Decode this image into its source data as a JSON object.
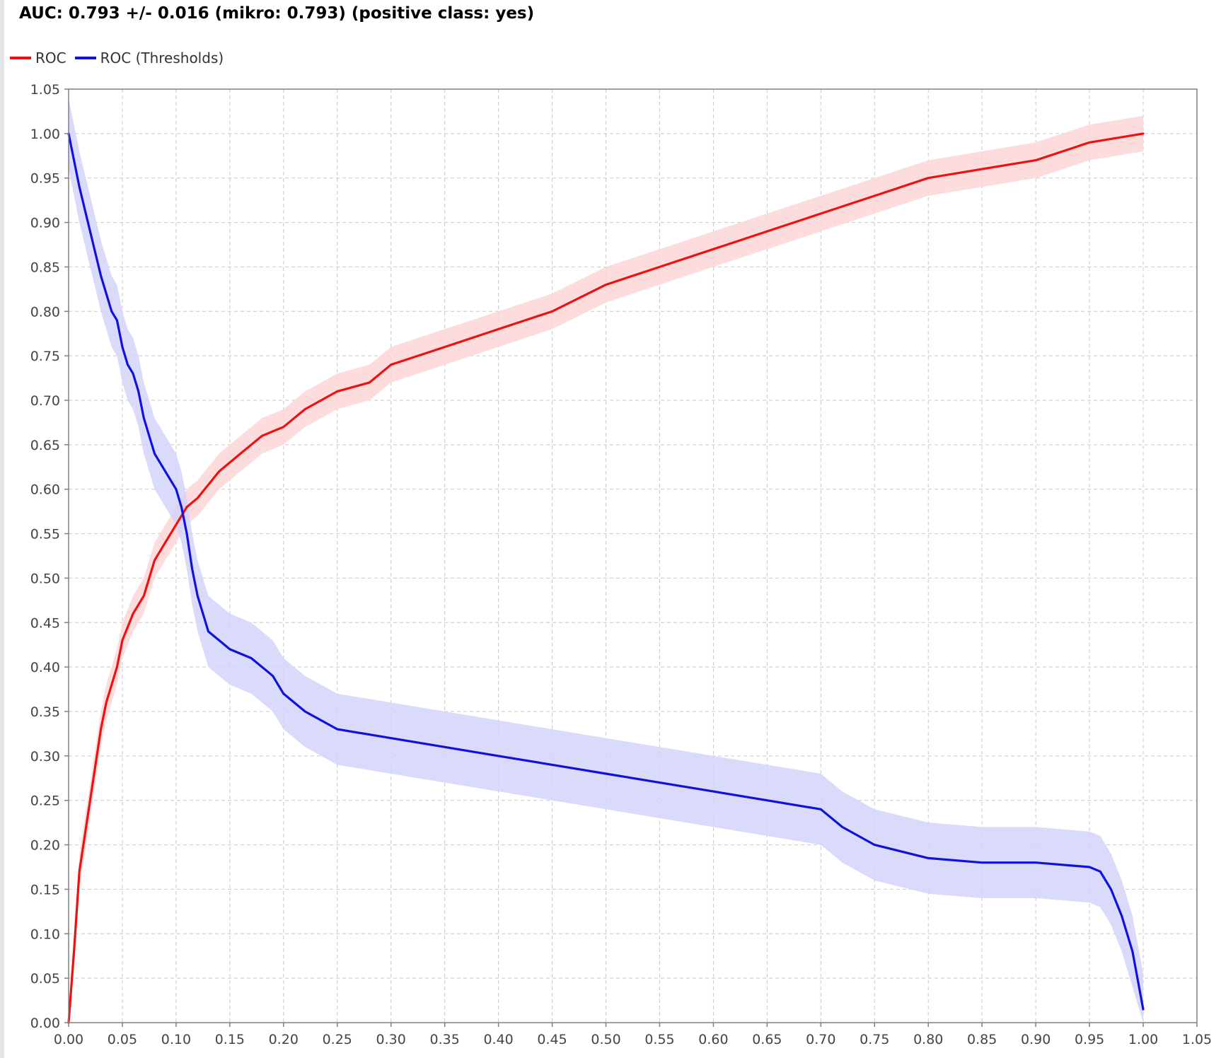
{
  "title": "AUC: 0.793 +/- 0.016 (mikro: 0.793) (positive class: yes)",
  "legend": [
    {
      "name": "ROC",
      "color": "#ee1111"
    },
    {
      "name": "ROC (Thresholds)",
      "color": "#1111dd"
    }
  ],
  "colors": {
    "roc": "#ee1111",
    "roc_band": "#fbd6d6",
    "thr": "#1111dd",
    "thr_band": "#d4d4fa",
    "grid": "#c8c8c8",
    "axis": "#808080"
  },
  "chart_data": {
    "type": "line",
    "title": "AUC: 0.793 +/- 0.016 (mikro: 0.793) (positive class: yes)",
    "xlabel": "",
    "ylabel": "",
    "xlim": [
      0,
      1.05
    ],
    "ylim": [
      0,
      1.05
    ],
    "grid": true,
    "legend_position": "top-left",
    "x_ticks": [
      "0.00",
      "0.05",
      "0.10",
      "0.15",
      "0.20",
      "0.25",
      "0.30",
      "0.35",
      "0.40",
      "0.45",
      "0.50",
      "0.55",
      "0.60",
      "0.65",
      "0.70",
      "0.75",
      "0.80",
      "0.85",
      "0.90",
      "0.95",
      "1.00",
      "1.05"
    ],
    "y_ticks": [
      "0.00",
      "0.05",
      "0.10",
      "0.15",
      "0.20",
      "0.25",
      "0.30",
      "0.35",
      "0.40",
      "0.45",
      "0.50",
      "0.55",
      "0.60",
      "0.65",
      "0.70",
      "0.75",
      "0.80",
      "0.85",
      "0.90",
      "0.95",
      "1.00",
      "1.05"
    ],
    "series": [
      {
        "name": "ROC",
        "x": [
          0.0,
          0.005,
          0.01,
          0.015,
          0.02,
          0.025,
          0.03,
          0.035,
          0.04,
          0.045,
          0.05,
          0.06,
          0.07,
          0.08,
          0.09,
          0.1,
          0.11,
          0.12,
          0.14,
          0.16,
          0.18,
          0.2,
          0.22,
          0.25,
          0.28,
          0.3,
          0.35,
          0.4,
          0.45,
          0.5,
          0.55,
          0.6,
          0.65,
          0.7,
          0.75,
          0.8,
          0.85,
          0.9,
          0.95,
          1.0
        ],
        "y": [
          0.0,
          0.08,
          0.17,
          0.21,
          0.25,
          0.29,
          0.33,
          0.36,
          0.38,
          0.4,
          0.43,
          0.46,
          0.48,
          0.52,
          0.54,
          0.56,
          0.58,
          0.59,
          0.62,
          0.64,
          0.66,
          0.67,
          0.69,
          0.71,
          0.72,
          0.74,
          0.76,
          0.78,
          0.8,
          0.83,
          0.85,
          0.87,
          0.89,
          0.91,
          0.93,
          0.95,
          0.96,
          0.97,
          0.99,
          1.0
        ],
        "band": 0.02
      },
      {
        "name": "ROC (Thresholds)",
        "x": [
          0.0,
          0.005,
          0.01,
          0.02,
          0.03,
          0.04,
          0.045,
          0.05,
          0.055,
          0.06,
          0.065,
          0.07,
          0.075,
          0.08,
          0.09,
          0.1,
          0.105,
          0.11,
          0.115,
          0.12,
          0.125,
          0.13,
          0.14,
          0.15,
          0.17,
          0.19,
          0.2,
          0.22,
          0.25,
          0.3,
          0.35,
          0.4,
          0.45,
          0.5,
          0.55,
          0.6,
          0.65,
          0.7,
          0.72,
          0.75,
          0.8,
          0.85,
          0.9,
          0.95,
          0.96,
          0.97,
          0.98,
          0.99,
          1.0
        ],
        "y": [
          1.0,
          0.97,
          0.94,
          0.89,
          0.84,
          0.8,
          0.79,
          0.76,
          0.74,
          0.73,
          0.71,
          0.68,
          0.66,
          0.64,
          0.62,
          0.6,
          0.58,
          0.55,
          0.51,
          0.48,
          0.46,
          0.44,
          0.43,
          0.42,
          0.41,
          0.39,
          0.37,
          0.35,
          0.33,
          0.32,
          0.31,
          0.3,
          0.29,
          0.28,
          0.27,
          0.26,
          0.25,
          0.24,
          0.22,
          0.2,
          0.185,
          0.18,
          0.18,
          0.175,
          0.17,
          0.15,
          0.12,
          0.08,
          0.015
        ],
        "band": 0.04
      }
    ]
  }
}
